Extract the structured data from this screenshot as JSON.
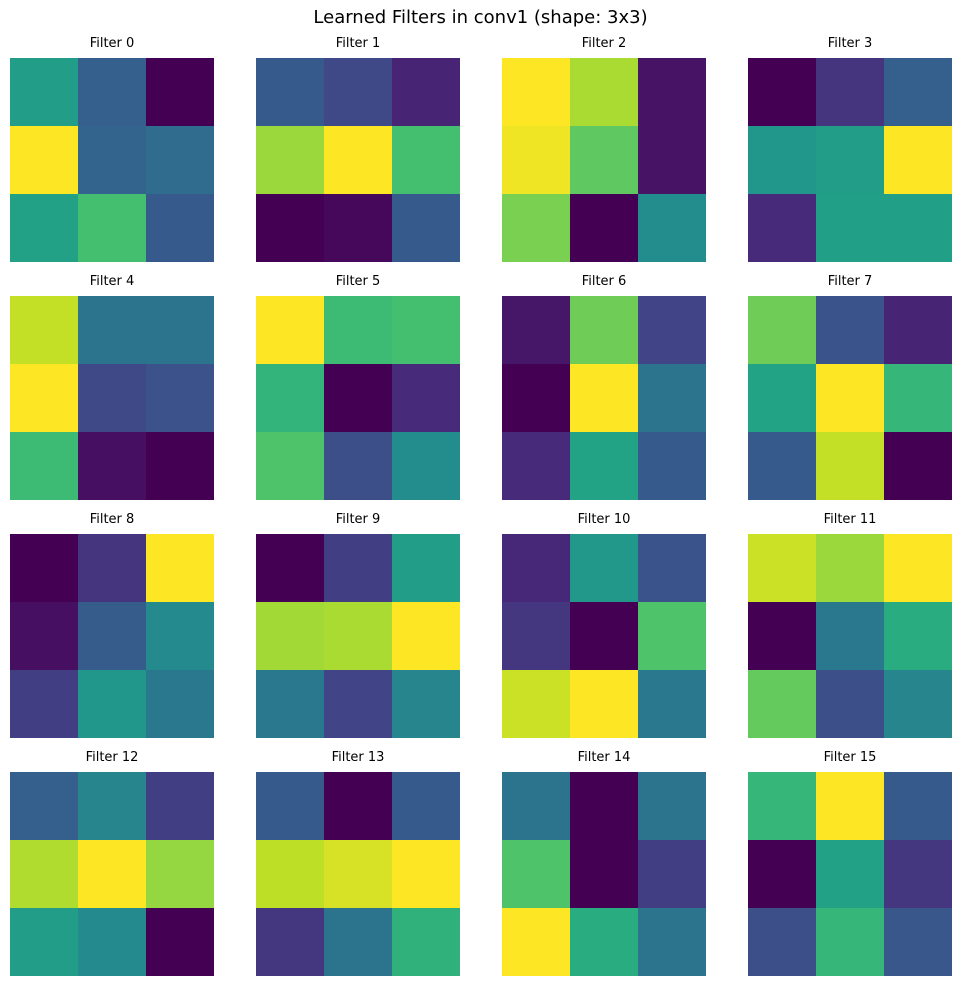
{
  "chart_data": {
    "type": "heatmap",
    "title": "Learned Filters in conv1 (shape: 3x3)",
    "colormap": "viridis",
    "grid": false,
    "filters": [
      {
        "name": "Filter 0",
        "values": [
          [
            0.55,
            0.3,
            0.0
          ],
          [
            1.0,
            0.32,
            0.35
          ],
          [
            0.57,
            0.7,
            0.28
          ]
        ]
      },
      {
        "name": "Filter 1",
        "values": [
          [
            0.28,
            0.22,
            0.1
          ],
          [
            0.85,
            1.0,
            0.7
          ],
          [
            0.0,
            0.02,
            0.28
          ]
        ]
      },
      {
        "name": "Filter 2",
        "values": [
          [
            1.0,
            0.87,
            0.05
          ],
          [
            0.98,
            0.75,
            0.05
          ],
          [
            0.8,
            0.0,
            0.48
          ]
        ]
      },
      {
        "name": "Filter 3",
        "values": [
          [
            0.0,
            0.15,
            0.3
          ],
          [
            0.52,
            0.55,
            1.0
          ],
          [
            0.12,
            0.56,
            0.56
          ]
        ]
      },
      {
        "name": "Filter 4",
        "values": [
          [
            0.91,
            0.38,
            0.38
          ],
          [
            1.0,
            0.22,
            0.25
          ],
          [
            0.68,
            0.04,
            0.0
          ]
        ]
      },
      {
        "name": "Filter 5",
        "values": [
          [
            1.0,
            0.68,
            0.7
          ],
          [
            0.65,
            0.0,
            0.12
          ],
          [
            0.72,
            0.24,
            0.48
          ]
        ]
      },
      {
        "name": "Filter 6",
        "values": [
          [
            0.06,
            0.78,
            0.2
          ],
          [
            0.0,
            1.0,
            0.38
          ],
          [
            0.12,
            0.58,
            0.28
          ]
        ]
      },
      {
        "name": "Filter 7",
        "values": [
          [
            0.78,
            0.26,
            0.1
          ],
          [
            0.58,
            1.0,
            0.66
          ],
          [
            0.28,
            0.91,
            0.0
          ]
        ]
      },
      {
        "name": "Filter 8",
        "values": [
          [
            0.0,
            0.15,
            1.0
          ],
          [
            0.04,
            0.29,
            0.47
          ],
          [
            0.18,
            0.52,
            0.4
          ]
        ]
      },
      {
        "name": "Filter 9",
        "values": [
          [
            0.0,
            0.18,
            0.55
          ],
          [
            0.86,
            0.87,
            1.0
          ],
          [
            0.4,
            0.2,
            0.45
          ]
        ]
      },
      {
        "name": "Filter 10",
        "values": [
          [
            0.11,
            0.53,
            0.26
          ],
          [
            0.16,
            0.0,
            0.72
          ],
          [
            0.92,
            1.0,
            0.4
          ]
        ]
      },
      {
        "name": "Filter 11",
        "values": [
          [
            0.92,
            0.85,
            1.0
          ],
          [
            0.0,
            0.4,
            0.62
          ],
          [
            0.76,
            0.24,
            0.45
          ]
        ]
      },
      {
        "name": "Filter 12",
        "values": [
          [
            0.3,
            0.45,
            0.18
          ],
          [
            0.88,
            1.0,
            0.84
          ],
          [
            0.55,
            0.47,
            0.0
          ]
        ]
      },
      {
        "name": "Filter 13",
        "values": [
          [
            0.28,
            0.0,
            0.28
          ],
          [
            0.9,
            0.94,
            1.0
          ],
          [
            0.16,
            0.38,
            0.64
          ]
        ]
      },
      {
        "name": "Filter 14",
        "values": [
          [
            0.38,
            0.0,
            0.38
          ],
          [
            0.72,
            0.0,
            0.18
          ],
          [
            1.0,
            0.62,
            0.38
          ]
        ]
      },
      {
        "name": "Filter 15",
        "values": [
          [
            0.66,
            1.0,
            0.28
          ],
          [
            0.0,
            0.57,
            0.16
          ],
          [
            0.24,
            0.66,
            0.27
          ]
        ]
      }
    ]
  }
}
